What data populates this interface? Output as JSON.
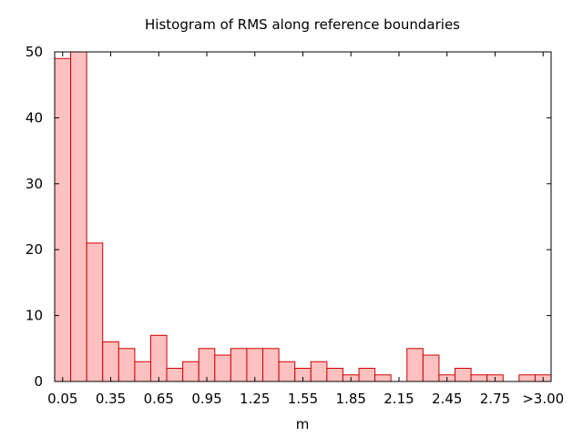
{
  "chart_data": {
    "type": "bar",
    "title": "Histogram of RMS along reference boundaries",
    "xlabel": "m",
    "ylabel": "",
    "ylim": [
      0,
      50
    ],
    "yticks": [
      0,
      10,
      20,
      30,
      40,
      50
    ],
    "xtick_labels": [
      "0.05",
      "0.35",
      "0.65",
      "0.95",
      "1.25",
      "1.55",
      "1.85",
      "2.15",
      "2.45",
      "2.75",
      ">3.00"
    ],
    "categories": [
      "0.05",
      "0.15",
      "0.25",
      "0.35",
      "0.45",
      "0.55",
      "0.65",
      "0.75",
      "0.85",
      "0.95",
      "1.05",
      "1.15",
      "1.25",
      "1.35",
      "1.45",
      "1.55",
      "1.65",
      "1.75",
      "1.85",
      "1.95",
      "2.05",
      "2.15",
      "2.25",
      "2.35",
      "2.45",
      "2.55",
      "2.65",
      "2.75",
      "2.85",
      "2.95",
      ">3.00"
    ],
    "values": [
      49,
      50,
      21,
      6,
      5,
      3,
      7,
      2,
      3,
      5,
      4,
      5,
      5,
      5,
      3,
      2,
      3,
      2,
      1,
      2,
      1,
      0,
      5,
      4,
      1,
      2,
      1,
      1,
      0,
      1,
      1
    ],
    "bar_fill": "#ffc0c0",
    "bar_stroke": "#cc0000",
    "grid": false
  }
}
